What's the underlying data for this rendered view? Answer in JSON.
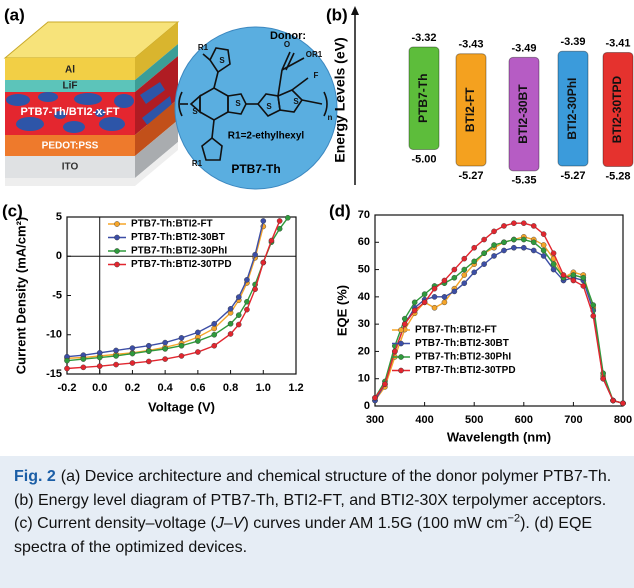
{
  "panel_a": {
    "label": "(a)",
    "layers": [
      "Al",
      "LiF",
      "PTB7-Th/BTI2-x-FT",
      "PEDOT:PSS",
      "ITO"
    ],
    "donor_title": "Donor:",
    "atoms": [
      "R1",
      "O",
      "OR1",
      "F",
      "S",
      "S",
      "S",
      "S",
      "S",
      "n",
      "R1"
    ],
    "side_chain": "R1=2-ethylhexyl",
    "name": "PTB7-Th"
  },
  "chart_data": [
    {
      "type": "energy_levels",
      "panel_label": "(b)",
      "ylabel": "Energy Levels (eV)",
      "categories": [
        "PTB7-Th",
        "BTI2-FT",
        "BTI2-30BT",
        "BTI2-30PhI",
        "BTI2-30TPD"
      ],
      "colors": [
        "#5dbd3b",
        "#f4a11f",
        "#b65cc4",
        "#3b9bdb",
        "#e5322e"
      ],
      "lumo": {
        "values": [
          -3.32,
          -3.43,
          -3.49,
          -3.39,
          -3.41
        ]
      },
      "homo": {
        "values": [
          -5.0,
          -5.27,
          -5.35,
          -5.27,
          -5.28
        ],
        "value_labels": [
          "-5.00",
          "-5.27",
          "-5.35",
          "-5.27",
          "-5.28"
        ]
      }
    },
    {
      "type": "line",
      "panel_label": "(c)",
      "xlabel": "Voltage (V)",
      "ylabel": "Current Density (mA/cm²)",
      "x": [
        -0.2,
        -0.1,
        0,
        0.1,
        0.2,
        0.3,
        0.4,
        0.5,
        0.6,
        0.7,
        0.8,
        0.85,
        0.9,
        0.95,
        1.0,
        1.05,
        1.1,
        1.15
      ],
      "xlim": [
        -0.2,
        1.2
      ],
      "xticks": [
        -0.2,
        {
          "value": 0,
          "label": "0.0"
        },
        0.2,
        0.4,
        0.6,
        0.8,
        {
          "value": 1,
          "label": "1.0"
        },
        1.2
      ],
      "ylim": [
        -15,
        5
      ],
      "yticks": [
        5,
        0,
        -5,
        -10,
        -15
      ],
      "zero_lines": true,
      "legend": "upper left",
      "series": [
        {
          "name": "PTB7-Th:BTI2-FT",
          "color": "#f5a52a",
          "values": [
            -13.0,
            -12.9,
            -12.7,
            -12.5,
            -12.3,
            -12.0,
            -11.6,
            -11.1,
            -10.3,
            -9.2,
            -7.2,
            -5.6,
            -3.4,
            -0.2,
            3.8,
            null,
            null,
            null
          ]
        },
        {
          "name": "PTB7-Th:BTI2-30BT",
          "color": "#3c4ea6",
          "values": [
            -12.8,
            -12.6,
            -12.3,
            -12.0,
            -11.7,
            -11.4,
            -11.0,
            -10.4,
            -9.7,
            -8.6,
            -6.7,
            -5.2,
            -3.0,
            0.2,
            4.5,
            null,
            null,
            null
          ]
        },
        {
          "name": "PTB7-Th:BTI2-30PhI",
          "color": "#2f9a3c",
          "values": [
            -13.3,
            -13.1,
            -12.9,
            -12.7,
            -12.4,
            -12.1,
            -11.8,
            -11.4,
            -10.8,
            -10.0,
            -8.6,
            -7.5,
            -5.8,
            -3.6,
            -0.8,
            1.8,
            3.5,
            4.9
          ]
        },
        {
          "name": "PTB7-Th:BTI2-30TPD",
          "color": "#e2262f",
          "values": [
            -14.3,
            -14.15,
            -14.0,
            -13.8,
            -13.6,
            -13.4,
            -13.1,
            -12.7,
            -12.2,
            -11.4,
            -9.9,
            -8.7,
            -6.8,
            -4.2,
            -0.8,
            2.0,
            4.5,
            null
          ]
        }
      ]
    },
    {
      "type": "line",
      "panel_label": "(d)",
      "xlabel": "Wavelength (nm)",
      "ylabel": "EQE (%)",
      "x": [
        300,
        320,
        340,
        360,
        380,
        400,
        420,
        440,
        460,
        480,
        500,
        520,
        540,
        560,
        580,
        600,
        620,
        640,
        660,
        680,
        700,
        720,
        740,
        760,
        780,
        800
      ],
      "xlim": [
        300,
        800
      ],
      "xticks": [
        300,
        400,
        500,
        600,
        700,
        800
      ],
      "ylim": [
        0,
        70
      ],
      "yticks": [
        0,
        10,
        20,
        30,
        40,
        50,
        60,
        70
      ],
      "legend": "lower center",
      "series": [
        {
          "name": "PTB7-Th:BTI2-FT",
          "color": "#f5a52a",
          "values": [
            2,
            7,
            18,
            28,
            34,
            38,
            36,
            38,
            43,
            48,
            52,
            56,
            58,
            60,
            61,
            62,
            61,
            59,
            54,
            47,
            49,
            48,
            36,
            11,
            2,
            1
          ]
        },
        {
          "name": "PTB7-Th:BTI2-30BT",
          "color": "#3c4ea6",
          "values": [
            2,
            8,
            20,
            30,
            36,
            39,
            40,
            40,
            42,
            45,
            49,
            52,
            55,
            57,
            58,
            58,
            57,
            55,
            50,
            46,
            47,
            46,
            35,
            10,
            2,
            1
          ]
        },
        {
          "name": "PTB7-Th:BTI2-30PhI",
          "color": "#2f9a3c",
          "values": [
            3,
            9,
            22,
            32,
            38,
            41,
            44,
            45,
            47,
            50,
            53,
            56,
            59,
            60,
            61,
            61,
            60,
            57,
            52,
            47,
            48,
            47,
            37,
            12,
            2,
            1
          ]
        },
        {
          "name": "PTB7-Th:BTI2-30TPD",
          "color": "#e2262f",
          "values": [
            3,
            8,
            20,
            30,
            35,
            38,
            43,
            46,
            50,
            54,
            58,
            61,
            64,
            66,
            67,
            67,
            66,
            63,
            56,
            48,
            46,
            44,
            33,
            10,
            2,
            1
          ]
        }
      ]
    }
  ],
  "caption": {
    "label": "Fig. 2",
    "parts": [
      "(a) Device architecture and chemical structure of the donor polymer PTB7-Th. (b) Energy level diagram of PTB7-Th, BTI2-FT, and BTI2-30X terpolymer acceptors. (c) Current density–voltage (",
      "J–V",
      ") curves under AM 1.5G (100 mW cm",
      "−2",
      "). (d) EQE spectra of the optimized devices."
    ]
  }
}
